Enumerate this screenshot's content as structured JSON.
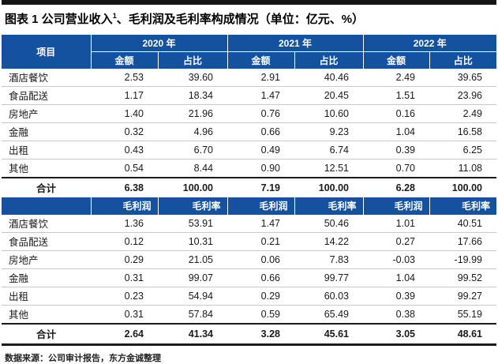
{
  "title": {
    "main": "图表 1 公司营业收入",
    "sup": "1",
    "rest": "、毛利润及毛利率构成情况（单位：亿元、%）"
  },
  "table": {
    "col_project": "项目",
    "years": [
      "2020 年",
      "2021 年",
      "2022 年"
    ],
    "sub_headers_revenue": {
      "amount": "金额",
      "share": "占比"
    },
    "sub_headers_profit": {
      "profit": "毛利润",
      "margin": "毛利率"
    },
    "revenue_rows": [
      {
        "label": "酒店餐饮",
        "values": [
          "2.53",
          "39.60",
          "2.91",
          "40.46",
          "2.49",
          "39.65"
        ]
      },
      {
        "label": "食品配送",
        "values": [
          "1.17",
          "18.34",
          "1.47",
          "20.45",
          "1.51",
          "23.96"
        ]
      },
      {
        "label": "房地产",
        "values": [
          "1.40",
          "21.96",
          "0.76",
          "10.60",
          "0.16",
          "2.49"
        ]
      },
      {
        "label": "金融",
        "values": [
          "0.32",
          "4.96",
          "0.66",
          "9.23",
          "1.04",
          "16.58"
        ]
      },
      {
        "label": "出租",
        "values": [
          "0.43",
          "6.70",
          "0.49",
          "6.74",
          "0.39",
          "6.25"
        ]
      },
      {
        "label": "其他",
        "values": [
          "0.54",
          "8.44",
          "0.90",
          "12.51",
          "0.70",
          "11.08"
        ]
      }
    ],
    "revenue_total": {
      "label": "合计",
      "values": [
        "6.38",
        "100.00",
        "7.19",
        "100.00",
        "6.28",
        "100.00"
      ]
    },
    "profit_rows": [
      {
        "label": "酒店餐饮",
        "values": [
          "1.36",
          "53.91",
          "1.47",
          "50.46",
          "1.01",
          "40.51"
        ]
      },
      {
        "label": "食品配送",
        "values": [
          "0.12",
          "10.31",
          "0.21",
          "14.22",
          "0.27",
          "17.66"
        ]
      },
      {
        "label": "房地产",
        "values": [
          "0.29",
          "21.05",
          "0.06",
          "7.83",
          "-0.03",
          "-19.99"
        ]
      },
      {
        "label": "金融",
        "values": [
          "0.31",
          "99.07",
          "0.66",
          "99.77",
          "1.04",
          "99.52"
        ]
      },
      {
        "label": "出租",
        "values": [
          "0.23",
          "54.94",
          "0.29",
          "60.03",
          "0.39",
          "99.27"
        ]
      },
      {
        "label": "其他",
        "values": [
          "0.31",
          "57.84",
          "0.59",
          "65.49",
          "0.38",
          "55.19"
        ]
      }
    ],
    "profit_total": {
      "label": "合计",
      "values": [
        "2.64",
        "41.34",
        "3.28",
        "45.61",
        "3.05",
        "48.61"
      ]
    }
  },
  "footer": {
    "source": "数据来源：公司审计报告，东方金诚整理"
  },
  "colors": {
    "header_blue": "#14519F",
    "top_bar": "#161616",
    "row_divider": "#c6c6c6"
  }
}
